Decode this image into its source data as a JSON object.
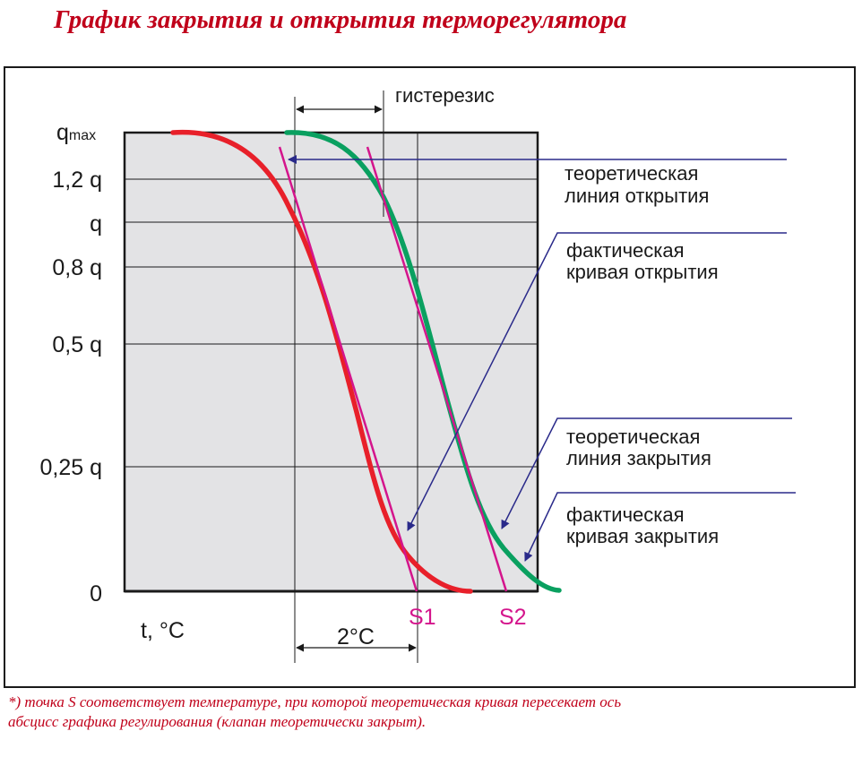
{
  "title": "График закрытия и открытия терморегулятора",
  "y_labels": {
    "qmax_base": "q",
    "qmax_sub": "max",
    "q12": "1,2 q",
    "q1": "q",
    "q08": "0,8 q",
    "q05": "0,5 q",
    "q025": "0,25 q",
    "q0": "0"
  },
  "x_axis_label": "t, °C",
  "hysteresis_label": "гистерезис",
  "delta_label": "2°C",
  "s1_label": "S1",
  "s2_label": "S2",
  "callouts": {
    "theor_open": [
      "теоретическая",
      "линия открытия"
    ],
    "actual_open": [
      "фактическая",
      "кривая открытия"
    ],
    "theor_close": [
      "теоретическая",
      "линия закрытия"
    ],
    "actual_close": [
      "фактическая",
      "кривая закрытия"
    ]
  },
  "footnote": "*) точка S соответствует температуре, при которой теоретическая кривая пересекает ось абсцисс графика регулирования (клапан теоретически закрыт).",
  "colors": {
    "closing_curve": "#e8202a",
    "opening_curve": "#0aa060",
    "theoretical_lines": "#d4158c",
    "callout_lines": "#2a2a8a",
    "plot_background": "#e3e3e5",
    "title": "#c0001a"
  }
}
